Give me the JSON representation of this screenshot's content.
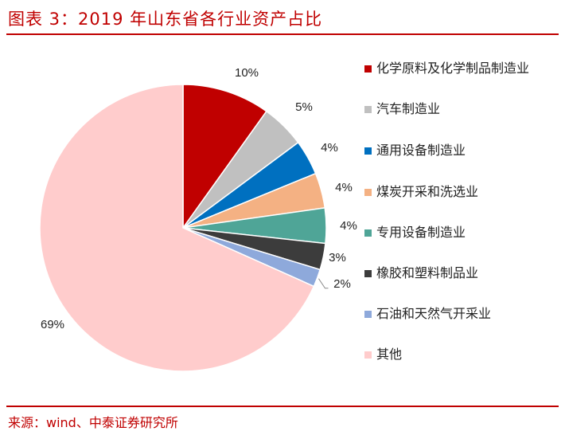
{
  "header": {
    "title": "图表 3：2019 年山东省各行业资产占比"
  },
  "footer": {
    "source": "来源：wind、中泰证券研究所"
  },
  "colors": {
    "accent": "#c00000"
  },
  "chart_data": {
    "type": "pie",
    "title": "图表 3：2019 年山东省各行业资产占比",
    "legend_position": "right",
    "slices": [
      {
        "label": "化学原料及化学制品制造业",
        "value": 10,
        "display": "10%",
        "color": "#c00000"
      },
      {
        "label": "汽车制造业",
        "value": 5,
        "display": "5%",
        "color": "#c0c0c0"
      },
      {
        "label": "通用设备制造业",
        "value": 4,
        "display": "4%",
        "color": "#0070c0"
      },
      {
        "label": "煤炭开采和洗选业",
        "value": 4,
        "display": "4%",
        "color": "#f4b183"
      },
      {
        "label": "专用设备制造业",
        "value": 4,
        "display": "4%",
        "color": "#4fa597"
      },
      {
        "label": "橡胶和塑料制品业",
        "value": 3,
        "display": "3%",
        "color": "#3c3c3c"
      },
      {
        "label": "石油和天然气开采业",
        "value": 2,
        "display": "2%",
        "color": "#8ea9db"
      },
      {
        "label": "其他",
        "value": 69,
        "display": "69%",
        "color": "#ffcccc"
      }
    ]
  }
}
